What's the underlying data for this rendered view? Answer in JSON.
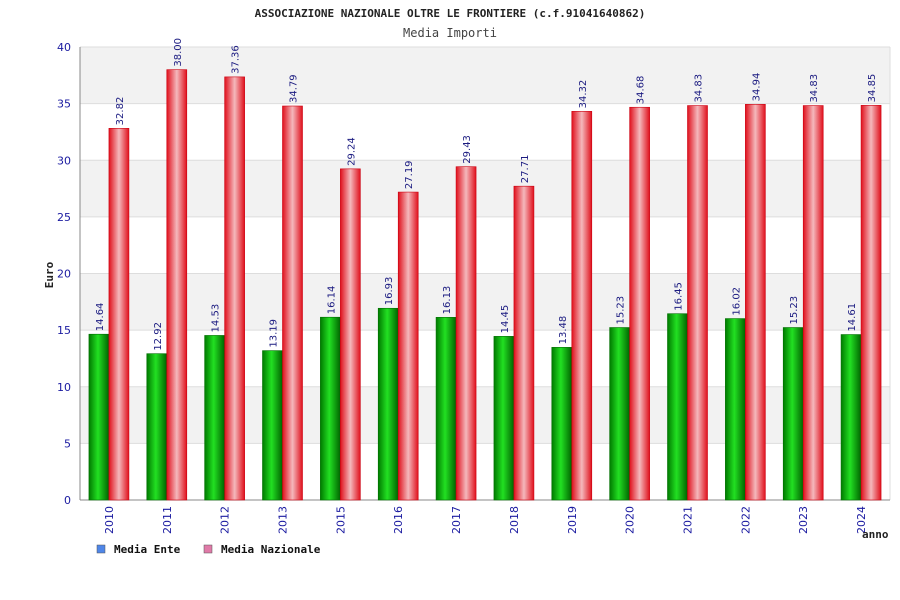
{
  "chart_data": {
    "type": "bar",
    "title": "ASSOCIAZIONE NAZIONALE OLTRE LE FRONTIERE (c.f.91041640862)",
    "subtitle": "Media Importi",
    "xlabel": "anno",
    "ylabel": "Euro",
    "ylim": [
      0,
      40
    ],
    "yticks": [
      0,
      5,
      10,
      15,
      20,
      25,
      30,
      35,
      40
    ],
    "categories": [
      "2010",
      "2011",
      "2012",
      "2013",
      "2015",
      "2016",
      "2017",
      "2018",
      "2019",
      "2020",
      "2021",
      "2022",
      "2023",
      "2024"
    ],
    "series": [
      {
        "name": "Media Ente",
        "color": "#00b400",
        "values": [
          14.64,
          12.92,
          14.53,
          13.19,
          16.14,
          16.93,
          16.13,
          14.45,
          13.48,
          15.23,
          16.45,
          16.02,
          15.23,
          14.61
        ]
      },
      {
        "name": "Media Nazionale",
        "color": "#e8202e",
        "values": [
          32.82,
          38.0,
          37.36,
          34.79,
          29.24,
          27.19,
          29.43,
          27.71,
          34.32,
          34.68,
          34.83,
          34.94,
          34.83,
          34.85
        ]
      }
    ],
    "value_labels": [
      [
        "14.64",
        "12.92",
        "14.53",
        "13.19",
        "16.14",
        "16.93",
        "16.13",
        "14.45",
        "13.48",
        "15.23",
        "16.45",
        "16.02",
        "15.23",
        "14.61"
      ],
      [
        "32.82",
        "38.00",
        "37.36",
        "34.79",
        "29.24",
        "27.19",
        "29.43",
        "27.71",
        "34.32",
        "34.68",
        "34.83",
        "34.94",
        "34.83",
        "34.85"
      ]
    ],
    "legend": {
      "position": "bottom-left",
      "items": [
        {
          "label": "Media Ente",
          "color": "#4f86e8"
        },
        {
          "label": "Media Nazionale",
          "color": "#e07aa8"
        }
      ]
    },
    "grid": true
  }
}
